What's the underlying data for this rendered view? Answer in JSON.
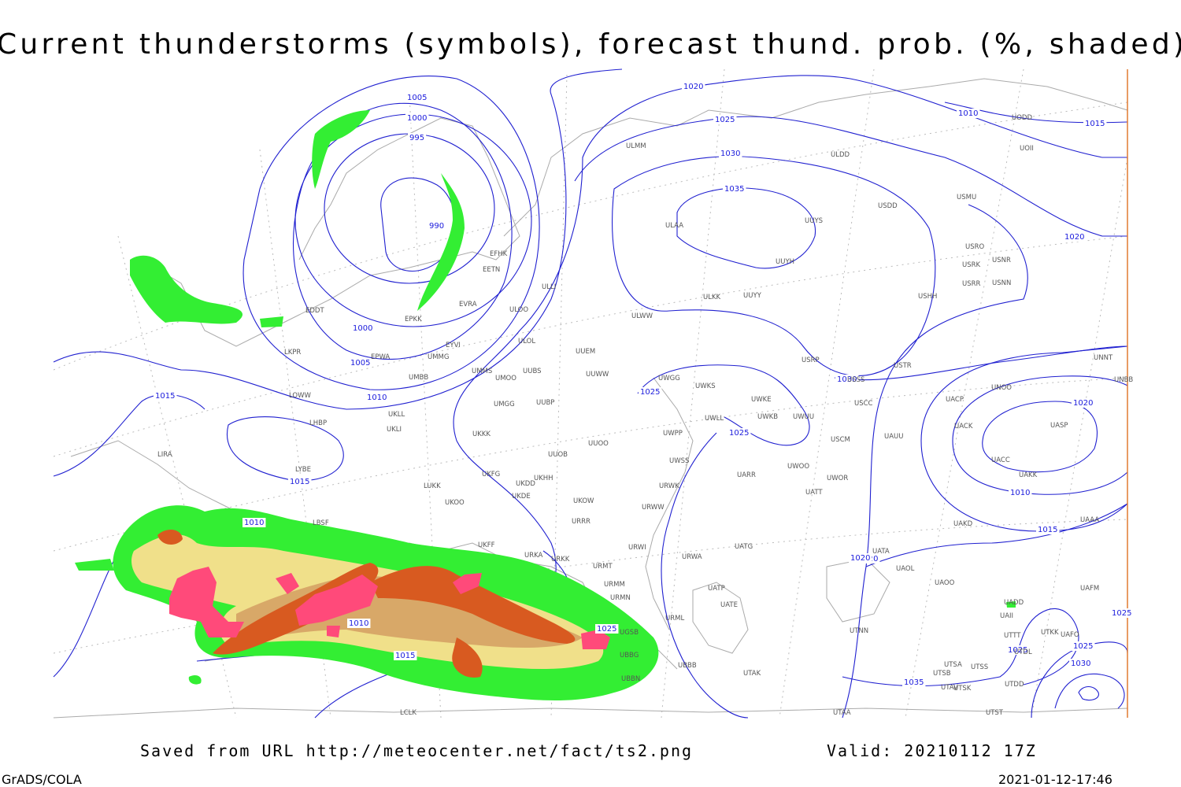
{
  "title": "Current thunderstorms (symbols), forecast thund. prob. (%, shaded)",
  "footer": {
    "source": "Saved from URL http://meteocenter.net/fact/ts2.png",
    "valid": "Valid: 20210112 17Z",
    "software": "GrADS/COLA",
    "timestamp": "2021-01-12-17:46"
  },
  "isobar_labels": [
    1005,
    1000,
    995,
    990,
    1000,
    1005,
    1010,
    1015,
    1015,
    1010,
    1010,
    1015,
    1020,
    1020,
    1025,
    1030,
    1035,
    1025,
    1025,
    1030,
    1010,
    1015,
    1020,
    1010,
    1015,
    1020,
    1025,
    1025,
    1030,
    1035,
    1025,
    1020,
    1025,
    102
  ],
  "stations": [
    "ULMM",
    "ULDD",
    "UOII",
    "UODD",
    "USDD",
    "USMU",
    "ULAA",
    "UUYS",
    "USRO",
    "USNR",
    "USRK",
    "USRR",
    "USNN",
    "UUYH",
    "USHH",
    "ULKK",
    "UUYY",
    "ULWW",
    "EFHK",
    "EETN",
    "EVRA",
    "ULOO",
    "ULLI",
    "EDDT",
    "EPKK",
    "EYVI",
    "ULOL",
    "UMMG",
    "EPWA",
    "LKPR",
    "UUEM",
    "UMMS",
    "UUBS",
    "UMOO",
    "UUWW",
    "UMBB",
    "UWGG",
    "UWKS",
    "USSS",
    "USTR",
    "USRP",
    "UNNT",
    "UNBB",
    "LOWW",
    "UKLL",
    "UMGG",
    "UUBP",
    "UWKE",
    "USCC",
    "UNOO",
    "UACP",
    "LHBP",
    "UKLI",
    "UKKK",
    "UWLL",
    "UWKB",
    "UWUU",
    "UACK",
    "UASP",
    "UWPP",
    "UUOO",
    "USCM",
    "UAUU",
    "LIRA",
    "LYBE",
    "UUOB",
    "UWSS",
    "UAKK",
    "UACC",
    "LUKK",
    "UKFG",
    "UKDD",
    "UKHH",
    "UARR",
    "UWOO",
    "UWOR",
    "UKOO",
    "UKDE",
    "UKOW",
    "URWK",
    "URWW",
    "UATT",
    "LBSF",
    "URRR",
    "UAKD",
    "UAAA",
    "UKFF",
    "URKA",
    "URKK",
    "URWI",
    "UATG",
    "URWA",
    "UATA",
    "UAOL",
    "UAOO",
    "URMT",
    "URMM",
    "UATP",
    "UATE",
    "URMN",
    "URML",
    "UAFM",
    "UADD",
    "UAII",
    "UTNN",
    "UTTT",
    "UTKK",
    "UAFO",
    "UTDL",
    "UBBB",
    "UTAK",
    "UTSB",
    "UTSA",
    "UTSS",
    "UTAV",
    "UTSK",
    "UTDD",
    "LCLK",
    "UTAA",
    "UTST",
    "UBBG",
    "UBBN",
    "UGSB"
  ]
}
